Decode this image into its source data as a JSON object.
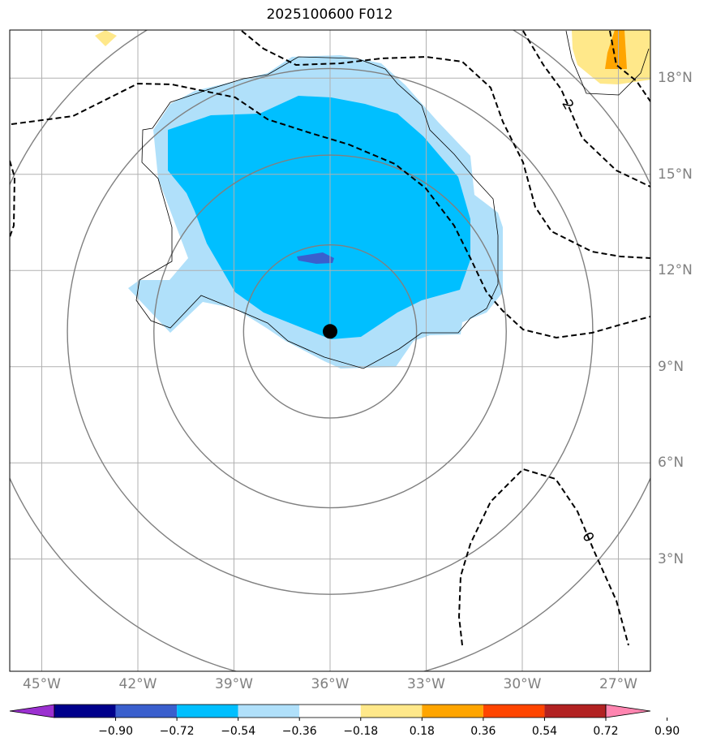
{
  "title": "2025100600 F012",
  "map": {
    "lon_range": [
      -46,
      -26
    ],
    "lat_range": [
      -0.5,
      19.5
    ],
    "lon_ticks": [
      {
        "value": -45,
        "label": "45°W"
      },
      {
        "value": -42,
        "label": "42°W"
      },
      {
        "value": -39,
        "label": "39°W"
      },
      {
        "value": -36,
        "label": "36°W"
      },
      {
        "value": -33,
        "label": "33°W"
      },
      {
        "value": -30,
        "label": "30°W"
      },
      {
        "value": -27,
        "label": "27°W"
      }
    ],
    "lat_ticks": [
      {
        "value": 3,
        "label": "3°N"
      },
      {
        "value": 6,
        "label": "6°N"
      },
      {
        "value": 9,
        "label": "9°N"
      },
      {
        "value": 12,
        "label": "12°N"
      },
      {
        "value": 15,
        "label": "15°N"
      },
      {
        "value": 18,
        "label": "18°N"
      }
    ],
    "center": {
      "lon": -36,
      "lat": 10.1
    },
    "range_ring_radii_deg": [
      2.7,
      5.5,
      8.2,
      11.0
    ],
    "dashed_contour_labels": [
      "2",
      "0"
    ]
  },
  "colorbar": {
    "levels": [
      "−0.90",
      "−0.72",
      "−0.54",
      "−0.36",
      "−0.18",
      "0.18",
      "0.36",
      "0.54",
      "0.72",
      "0.90"
    ],
    "colors": [
      "#9b30d0",
      "#00008b",
      "#3a5fcd",
      "#00bfff",
      "#b0e0fa",
      "#ffffff",
      "#ffe88a",
      "#ffa500",
      "#ff4500",
      "#b22222",
      "#ff85b0"
    ]
  }
}
